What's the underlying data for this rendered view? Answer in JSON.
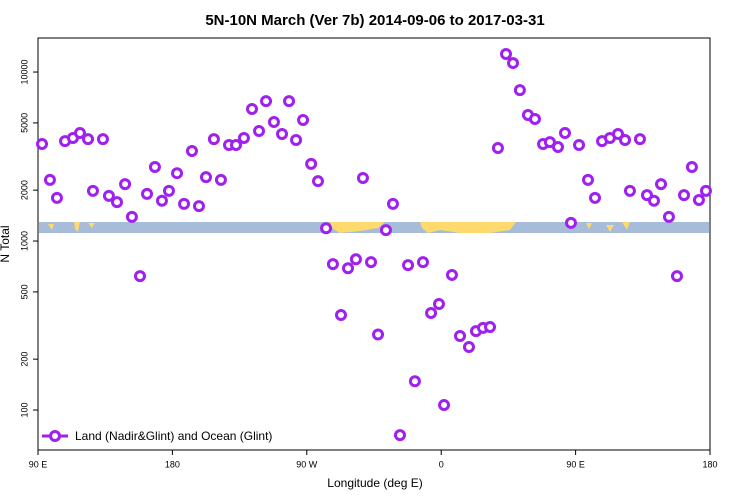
{
  "chart_data": {
    "type": "scatter",
    "title": "5N-10N March (Ver 7b)   2014-09-06 to 2017-03-31",
    "x_label": "Longitude (deg E)",
    "y_label": "N Total",
    "log_y": true,
    "xlim": [
      90,
      540
    ],
    "ylim": [
      58,
      15900
    ],
    "xticks": [
      {
        "value": 90,
        "label": "90 E"
      },
      {
        "value": 180,
        "label": "180"
      },
      {
        "value": 270,
        "label": "90 W"
      },
      {
        "value": 360,
        "label": "0"
      },
      {
        "value": 450,
        "label": "90 E"
      },
      {
        "value": 540,
        "label": "180"
      }
    ],
    "yticks": [
      100,
      200,
      500,
      1000,
      2000,
      5000,
      10000
    ],
    "legend_position": "bottom-left",
    "series": [
      {
        "name": "Land (Nadir&Glint) and Ocean (Glint)",
        "color": "#a020f0",
        "x": [
          92.7,
          98.0,
          102.7,
          108.1,
          113.4,
          118.1,
          123.5,
          126.8,
          133.5,
          137.5,
          142.9,
          148.3,
          152.9,
          158.3,
          163.0,
          168.3,
          173.0,
          177.7,
          183.1,
          187.8,
          193.1,
          197.8,
          202.5,
          207.8,
          212.5,
          217.9,
          222.6,
          227.9,
          233.3,
          238.0,
          242.7,
          248.0,
          253.4,
          258.1,
          262.8,
          267.5,
          272.9,
          277.5,
          282.9,
          287.5,
          292.9,
          297.6,
          302.9,
          307.6,
          313.0,
          317.7,
          323.0,
          327.7,
          332.4,
          337.8,
          342.4,
          347.8,
          353.2,
          358.5,
          361.9,
          367.2,
          372.6,
          378.6,
          383.3,
          388.0,
          392.7,
          398.0,
          403.4,
          408.1,
          412.7,
          418.1,
          422.8,
          428.2,
          432.8,
          438.2,
          442.9,
          446.9,
          452.3,
          458.3,
          463.0,
          467.7,
          473.0,
          478.4,
          483.1,
          486.4,
          493.1,
          497.8,
          502.5,
          507.2,
          512.5,
          517.9,
          522.6,
          527.9,
          532.6,
          537.3
        ],
        "values": [
          3750,
          2300,
          1800,
          3900,
          4070,
          4360,
          4010,
          1980,
          4010,
          1850,
          1700,
          2170,
          1390,
          620,
          1900,
          2740,
          1730,
          1980,
          2520,
          1660,
          3410,
          1610,
          2390,
          4010,
          2300,
          3700,
          3700,
          4070,
          6040,
          4480,
          6730,
          5060,
          4300,
          6730,
          3960,
          5200,
          2860,
          2260,
          1190,
          730,
          365,
          690,
          780,
          2360,
          750,
          280,
          1160,
          1660,
          71,
          720,
          148,
          750,
          375,
          424,
          107,
          630,
          274,
          236,
          293,
          306,
          310,
          3550,
          12790,
          11300,
          7820,
          5570,
          5270,
          3750,
          3850,
          3600,
          4360,
          1280,
          3700,
          2300,
          1800,
          3900,
          4070,
          4300,
          3960,
          1980,
          4010,
          1870,
          1730,
          2170,
          1390,
          620,
          1870,
          2740,
          1750,
          1980
        ]
      }
    ]
  }
}
